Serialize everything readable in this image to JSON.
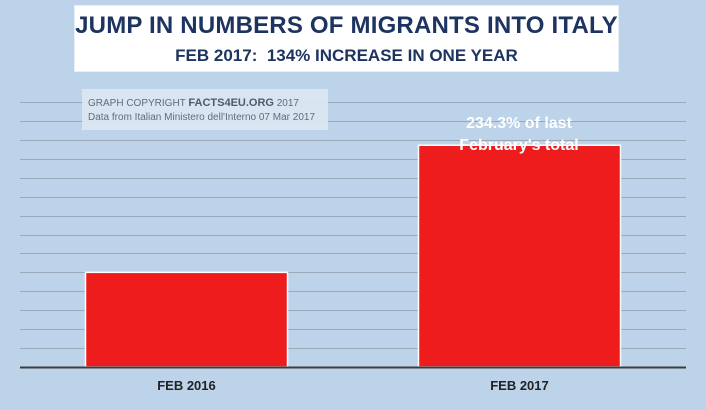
{
  "header": {
    "title": "JUMP IN NUMBERS OF MIGRANTS INTO ITALY",
    "subtitle": "FEB 2017:  134% INCREASE IN ONE YEAR"
  },
  "copyright": {
    "prefix": "GRAPH COPYRIGHT ",
    "brand": "FACTS4EU.ORG",
    "year": " 2017",
    "source": "Data from Italian Ministero dell'Interno 07 Mar 2017"
  },
  "colors": {
    "background": "#bcd3ea",
    "bar": "#ee1c1c",
    "gridline": "#9aa9b8",
    "baseline": "#3c3c3c",
    "title": "#1d3360"
  },
  "chart_data": {
    "type": "bar",
    "categories": [
      "FEB 2016",
      "FEB 2017"
    ],
    "values": [
      100,
      234.3
    ],
    "ylim": [
      0,
      280
    ],
    "grid": true,
    "annotation": {
      "line1": "234.3% of last",
      "line2": "February's total"
    }
  }
}
